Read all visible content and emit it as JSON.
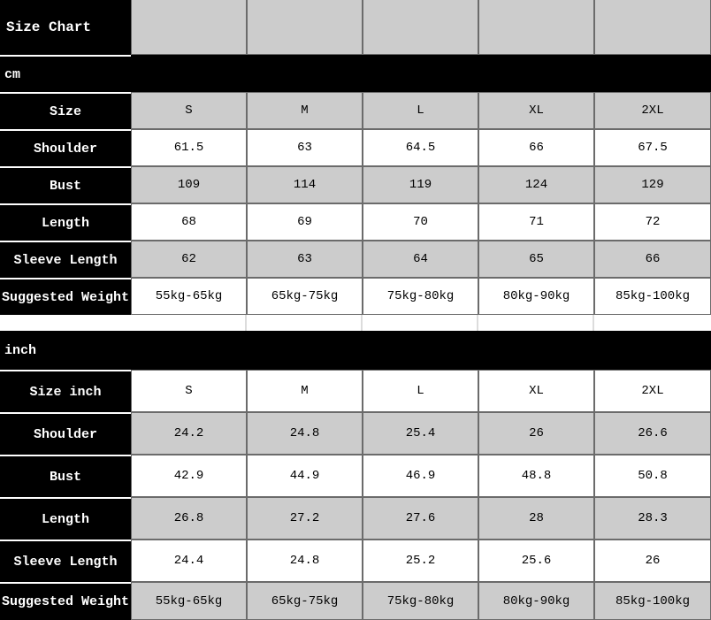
{
  "chart_data": {
    "type": "table",
    "title": "Size Chart",
    "column_headers": [
      "S",
      "M",
      "L",
      "XL",
      "2XL"
    ],
    "sections": [
      {
        "unit": "cm",
        "rows": [
          {
            "label": "Size",
            "values": [
              "S",
              "M",
              "L",
              "XL",
              "2XL"
            ]
          },
          {
            "label": "Shoulder",
            "values": [
              "61.5",
              "63",
              "64.5",
              "66",
              "67.5"
            ]
          },
          {
            "label": "Bust",
            "values": [
              "109",
              "114",
              "119",
              "124",
              "129"
            ]
          },
          {
            "label": "Length",
            "values": [
              "68",
              "69",
              "70",
              "71",
              "72"
            ]
          },
          {
            "label": "Sleeve Length",
            "values": [
              "62",
              "63",
              "64",
              "65",
              "66"
            ]
          },
          {
            "label": "Suggested Weight",
            "values": [
              "55kg-65kg",
              "65kg-75kg",
              "75kg-80kg",
              "80kg-90kg",
              "85kg-100kg"
            ]
          }
        ]
      },
      {
        "unit": "inch",
        "rows": [
          {
            "label": "Size inch",
            "values": [
              "S",
              "M",
              "L",
              "XL",
              "2XL"
            ]
          },
          {
            "label": "Shoulder",
            "values": [
              "24.2",
              "24.8",
              "25.4",
              "26",
              "26.6"
            ]
          },
          {
            "label": "Bust",
            "values": [
              "42.9",
              "44.9",
              "46.9",
              "48.8",
              "50.8"
            ]
          },
          {
            "label": "Length",
            "values": [
              "26.8",
              "27.2",
              "27.6",
              "28",
              "28.3"
            ]
          },
          {
            "label": "Sleeve Length",
            "values": [
              "24.4",
              "24.8",
              "25.2",
              "25.6",
              "26"
            ]
          },
          {
            "label": "Suggested Weight",
            "values": [
              "55kg-65kg",
              "65kg-75kg",
              "75kg-80kg",
              "80kg-90kg",
              "85kg-100kg"
            ]
          }
        ]
      }
    ],
    "colors": {
      "label_bg": "#000000",
      "label_text": "#ffffff",
      "shaded_cell": "#cccccc",
      "plain_cell": "#ffffff",
      "cell_border": "#6b6b6b"
    }
  }
}
